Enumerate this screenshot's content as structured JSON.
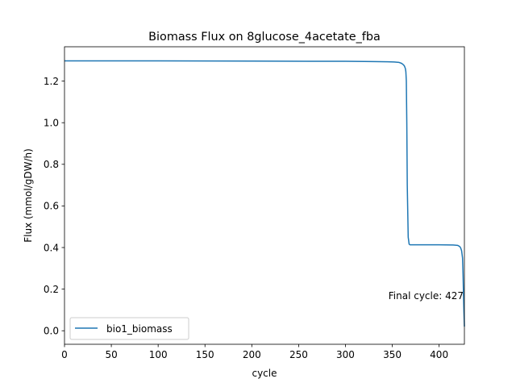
{
  "chart_data": {
    "type": "line",
    "title": "Biomass Flux on 8glucose_4acetate_fba",
    "xlabel": "cycle",
    "ylabel": "Flux (mmol/gDW/h)",
    "xlim": [
      0,
      427
    ],
    "ylim": [
      -0.065,
      1.365
    ],
    "xticks": [
      0,
      50,
      100,
      150,
      200,
      250,
      300,
      350,
      400
    ],
    "yticks": [
      0.0,
      0.2,
      0.4,
      0.6,
      0.8,
      1.0,
      1.2
    ],
    "grid": false,
    "legend_position": "lower-left",
    "annotation": "Final cycle: 427",
    "series": [
      {
        "name": "bio1_biomass",
        "color": "#1f77b4",
        "x": [
          0,
          100,
          200,
          300,
          330,
          345,
          352,
          357,
          360,
          362,
          363,
          364,
          364.5,
          365,
          365.5,
          366,
          367,
          368,
          369,
          370,
          380,
          400,
          415,
          420,
          422,
          423,
          424,
          425,
          425.5,
          426,
          426.5,
          427
        ],
        "y": [
          1.297,
          1.297,
          1.296,
          1.295,
          1.294,
          1.293,
          1.292,
          1.29,
          1.285,
          1.278,
          1.272,
          1.26,
          1.245,
          1.2,
          1.0,
          0.7,
          0.45,
          0.416,
          0.413,
          0.413,
          0.413,
          0.413,
          0.412,
          0.41,
          0.405,
          0.398,
          0.385,
          0.35,
          0.28,
          0.18,
          0.09,
          0.02
        ]
      }
    ]
  }
}
